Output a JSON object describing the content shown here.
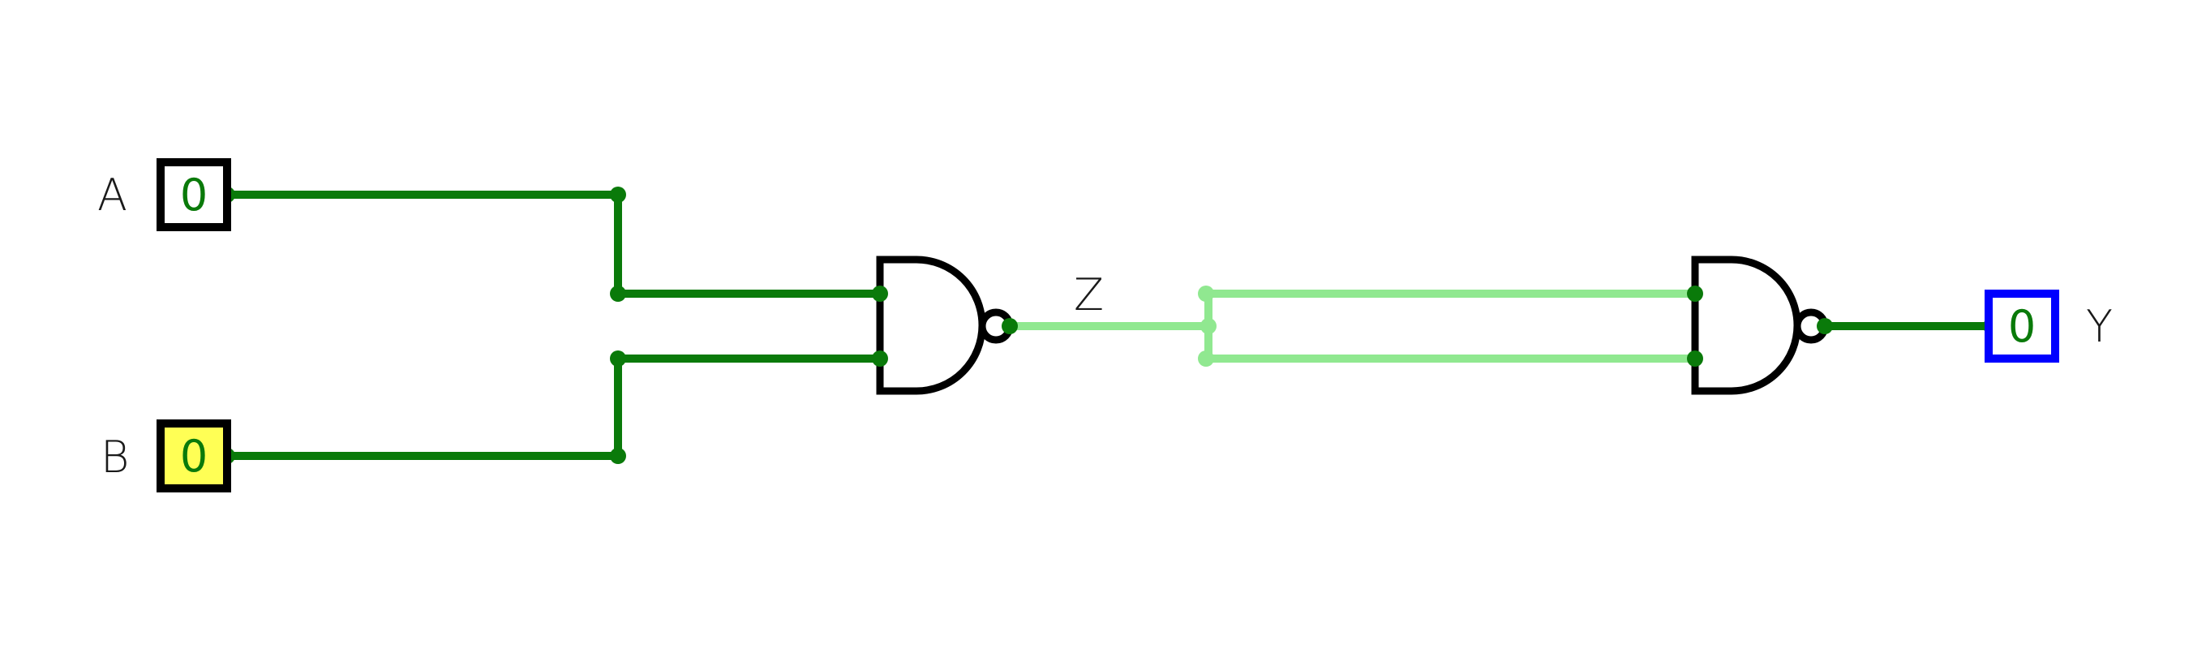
{
  "circuit": {
    "inputs": [
      {
        "label": "A",
        "value": "0",
        "highlighted": false
      },
      {
        "label": "B",
        "value": "0",
        "highlighted": true
      }
    ],
    "gates": [
      {
        "type": "NAND"
      },
      {
        "type": "NAND"
      }
    ],
    "tunnel_label": "Z",
    "output": {
      "label": "Y",
      "value": "0"
    }
  },
  "colors": {
    "wire_active": "#0a7a0a",
    "wire_tunnel": "#90e890",
    "output_border": "#0000ff",
    "input_highlight": "#ffff55",
    "gate_stroke": "#000000"
  }
}
